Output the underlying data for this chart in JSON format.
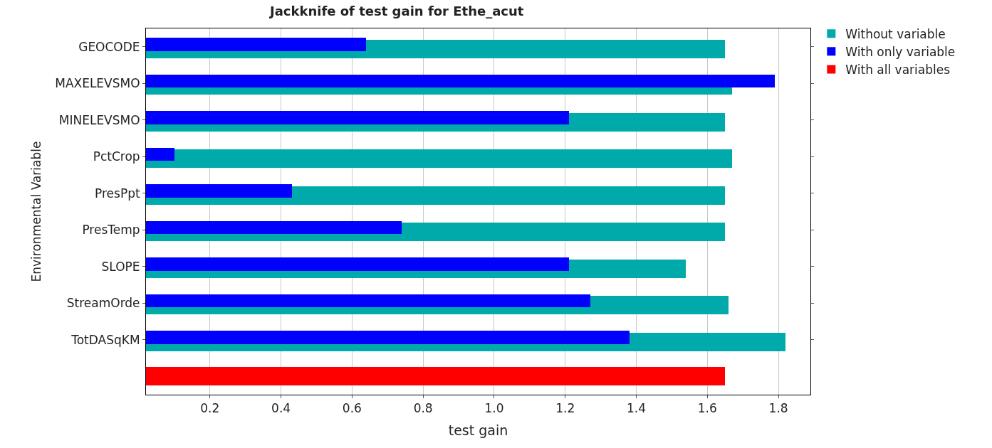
{
  "chart_data": {
    "type": "bar",
    "orientation": "horizontal",
    "title": "Jackknife of test gain for Ethe_acut",
    "xlabel": "test gain",
    "ylabel": "Environmental Variable",
    "categories": [
      "GEOCODE",
      "MAXELEVSMO",
      "MINELEVSMO",
      "PctCrop",
      "PresPpt",
      "PresTemp",
      "SLOPE",
      "StreamOrde",
      "TotDASqKM",
      null
    ],
    "series": [
      {
        "name": "Without variable",
        "color": "#00aaaa",
        "values": [
          1.65,
          1.67,
          1.65,
          1.67,
          1.65,
          1.65,
          1.54,
          1.66,
          1.82,
          null
        ]
      },
      {
        "name": "With only variable",
        "color": "#0000ff",
        "values": [
          0.64,
          1.79,
          1.21,
          0.1,
          0.43,
          0.74,
          1.21,
          1.27,
          1.38,
          null
        ]
      },
      {
        "name": "With all variables",
        "color": "#ff0000",
        "values": [
          null,
          null,
          null,
          null,
          null,
          null,
          null,
          null,
          null,
          1.65
        ]
      }
    ],
    "xlim": [
      0.02,
      1.89
    ],
    "xticks": [
      {
        "value": 0.2,
        "label": "0.2"
      },
      {
        "value": 0.4,
        "label": "0.4"
      },
      {
        "value": 0.6,
        "label": "0.6"
      },
      {
        "value": 0.8,
        "label": "0.8"
      },
      {
        "value": 1.0,
        "label": "1.0"
      },
      {
        "value": 1.2,
        "label": "1.2"
      },
      {
        "value": 1.4,
        "label": "1.4"
      },
      {
        "value": 1.6,
        "label": "1.6"
      },
      {
        "value": 1.8,
        "label": "1.8"
      }
    ],
    "grid": "x",
    "legend": "top right"
  }
}
